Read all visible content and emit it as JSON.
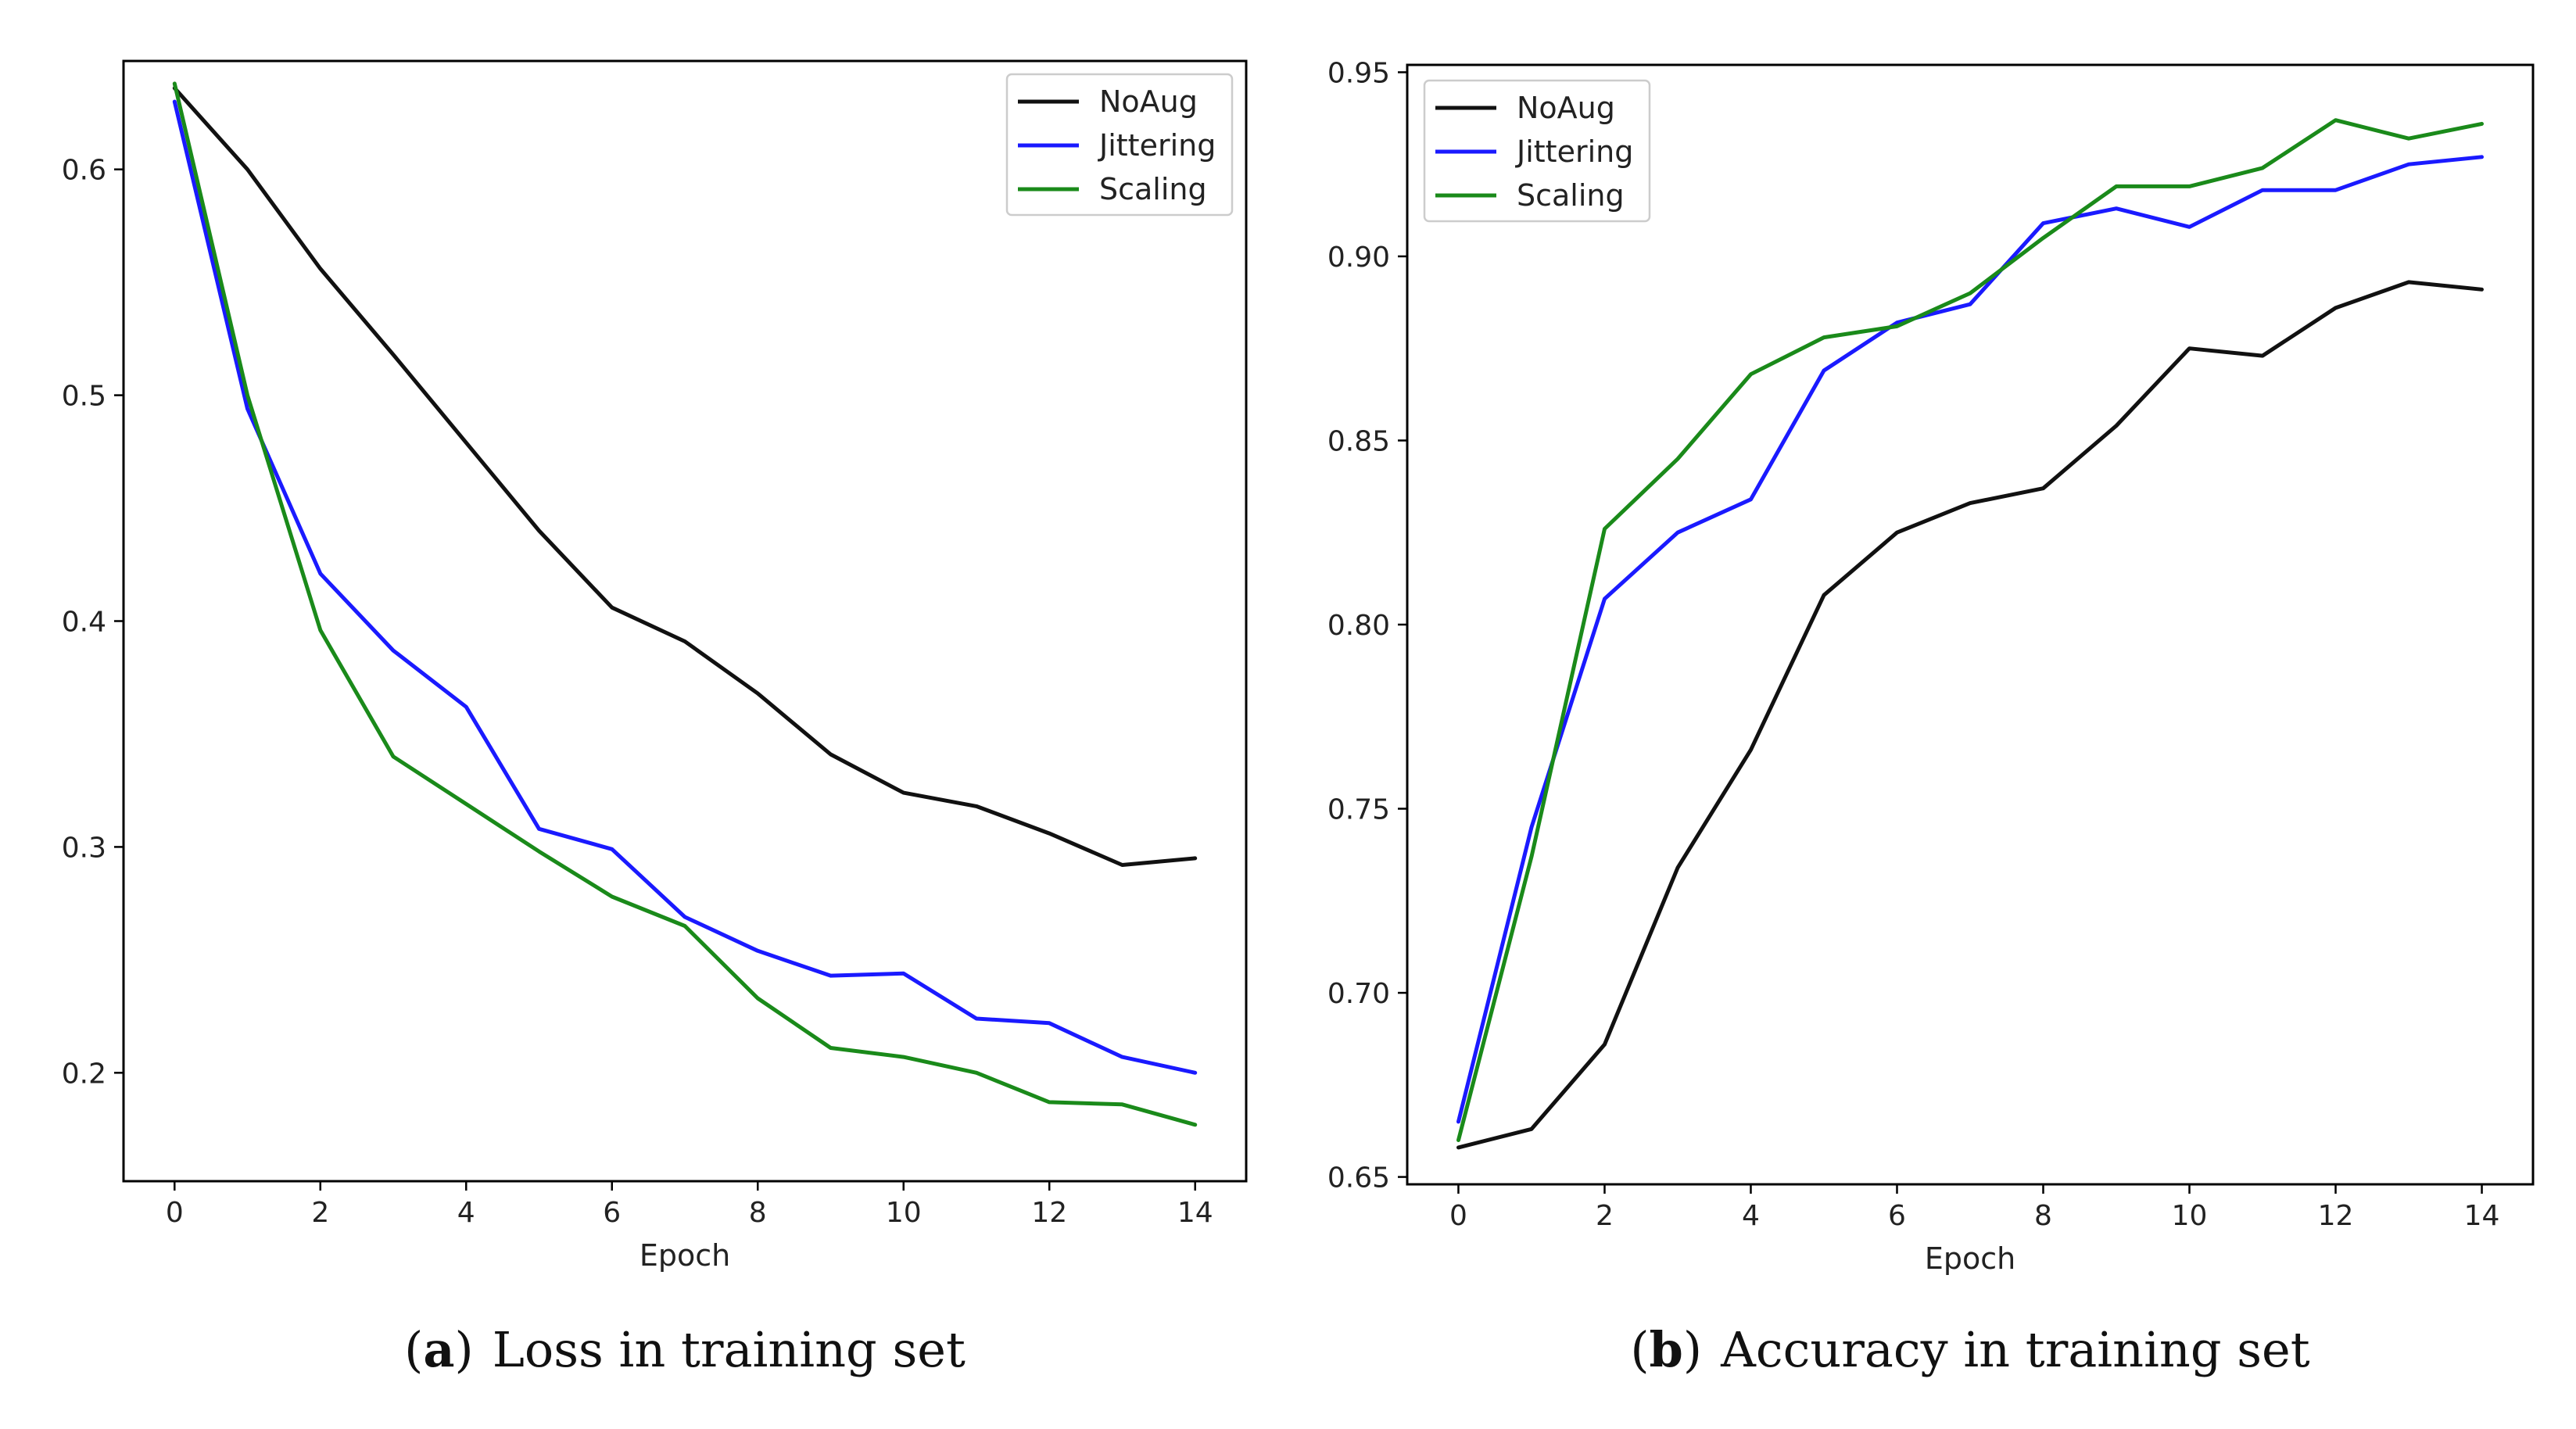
{
  "chart_data": [
    {
      "type": "line",
      "panel_letter": "a",
      "caption": "Loss in training set",
      "xlabel": "Epoch",
      "ylabel": "",
      "xlim": [
        -0.7,
        14.7
      ],
      "ylim": [
        0.152,
        0.648
      ],
      "xticks": [
        0,
        2,
        4,
        6,
        8,
        10,
        12,
        14
      ],
      "xtick_labels": [
        "0",
        "2",
        "4",
        "6",
        "8",
        "10",
        "12",
        "14"
      ],
      "yticks": [
        0.2,
        0.3,
        0.4,
        0.5,
        0.6
      ],
      "ytick_labels": [
        "0.2",
        "0.3",
        "0.4",
        "0.5",
        "0.6"
      ],
      "legend_position": "top-right",
      "x": [
        0,
        1,
        2,
        3,
        4,
        5,
        6,
        7,
        8,
        9,
        10,
        11,
        12,
        13,
        14
      ],
      "series": [
        {
          "name": "NoAug",
          "color": "#111111",
          "values": [
            0.636,
            0.6,
            0.556,
            0.518,
            0.479,
            0.44,
            0.406,
            0.391,
            0.368,
            0.341,
            0.324,
            0.318,
            0.306,
            0.292,
            0.295
          ]
        },
        {
          "name": "Jittering",
          "color": "#1a1aff",
          "values": [
            0.63,
            0.494,
            0.421,
            0.387,
            0.362,
            0.308,
            0.299,
            0.269,
            0.254,
            0.243,
            0.244,
            0.224,
            0.222,
            0.207,
            0.2
          ]
        },
        {
          "name": "Scaling",
          "color": "#1a8a1a",
          "values": [
            0.638,
            0.5,
            0.396,
            0.34,
            0.319,
            0.298,
            0.278,
            0.265,
            0.233,
            0.211,
            0.207,
            0.2,
            0.187,
            0.186,
            0.177
          ]
        }
      ]
    },
    {
      "type": "line",
      "panel_letter": "b",
      "caption": "Accuracy in training set",
      "xlabel": "Epoch",
      "ylabel": "",
      "xlim": [
        -0.7,
        14.7
      ],
      "ylim": [
        0.648,
        0.952
      ],
      "xticks": [
        0,
        2,
        4,
        6,
        8,
        10,
        12,
        14
      ],
      "xtick_labels": [
        "0",
        "2",
        "4",
        "6",
        "8",
        "10",
        "12",
        "14"
      ],
      "yticks": [
        0.65,
        0.7,
        0.75,
        0.8,
        0.85,
        0.9,
        0.95
      ],
      "ytick_labels": [
        "0.65",
        "0.70",
        "0.75",
        "0.80",
        "0.85",
        "0.90",
        "0.95"
      ],
      "legend_position": "top-left",
      "x": [
        0,
        1,
        2,
        3,
        4,
        5,
        6,
        7,
        8,
        9,
        10,
        11,
        12,
        13,
        14
      ],
      "series": [
        {
          "name": "NoAug",
          "color": "#111111",
          "values": [
            0.658,
            0.663,
            0.686,
            0.734,
            0.766,
            0.808,
            0.825,
            0.833,
            0.837,
            0.854,
            0.875,
            0.873,
            0.886,
            0.893,
            0.891
          ]
        },
        {
          "name": "Jittering",
          "color": "#1a1aff",
          "values": [
            0.665,
            0.745,
            0.807,
            0.825,
            0.834,
            0.869,
            0.882,
            0.887,
            0.909,
            0.913,
            0.908,
            0.918,
            0.918,
            0.925,
            0.927
          ]
        },
        {
          "name": "Scaling",
          "color": "#1a8a1a",
          "values": [
            0.66,
            0.737,
            0.826,
            0.845,
            0.868,
            0.878,
            0.881,
            0.89,
            0.905,
            0.919,
            0.919,
            0.924,
            0.937,
            0.932,
            0.936
          ]
        }
      ]
    }
  ]
}
